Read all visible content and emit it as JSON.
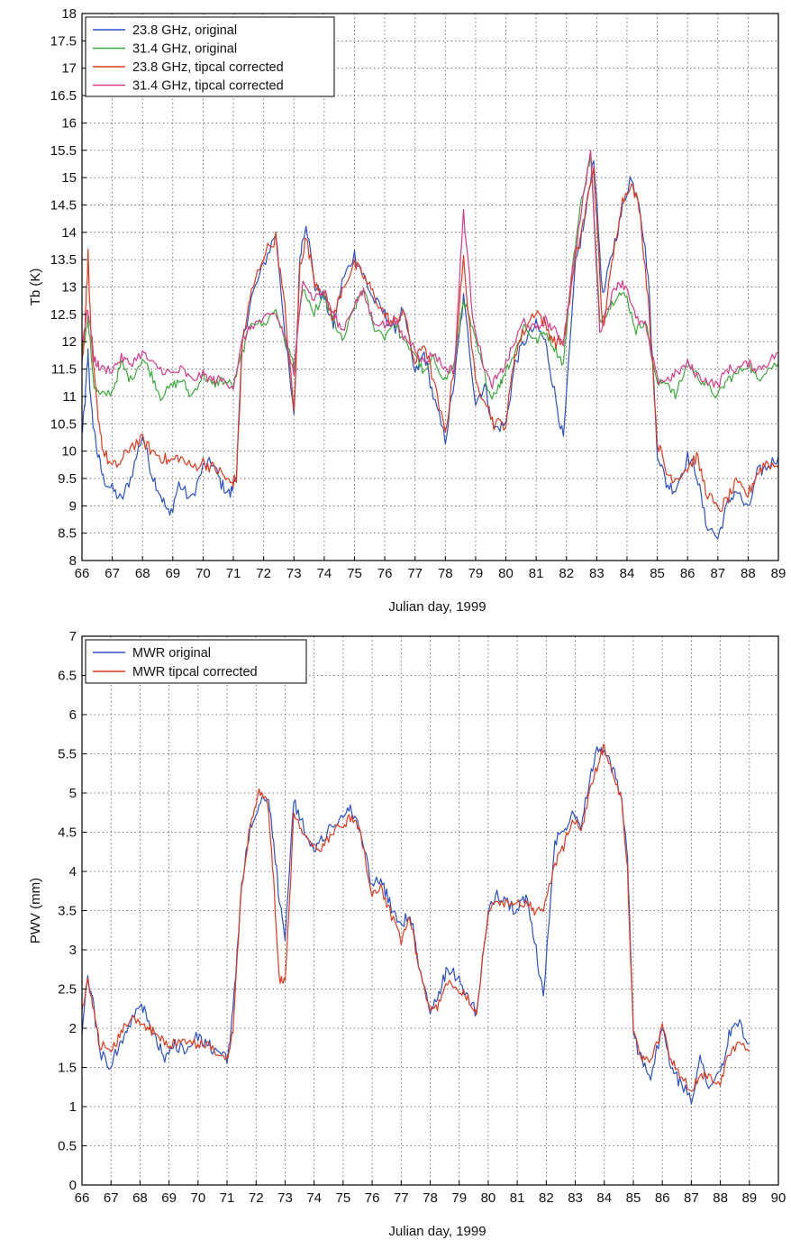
{
  "chart_data": [
    {
      "type": "line",
      "title": "",
      "xlabel": "Julian day, 1999",
      "ylabel": "Tb (K)",
      "xlim": [
        66,
        89
      ],
      "ylim": [
        8,
        18
      ],
      "xticks": [
        66,
        67,
        68,
        69,
        70,
        71,
        72,
        73,
        74,
        75,
        76,
        77,
        78,
        79,
        80,
        81,
        82,
        83,
        84,
        85,
        86,
        87,
        88,
        89
      ],
      "yticks": [
        8,
        8.5,
        9,
        9.5,
        10,
        10.5,
        11,
        11.5,
        12,
        12.5,
        13,
        13.5,
        14,
        14.5,
        15,
        15.5,
        16,
        16.5,
        17,
        17.5,
        18
      ],
      "grid": true,
      "legend": "top-left",
      "series": [
        {
          "name": "23.8 GHz, original",
          "color": "#2b50c8",
          "x": [
            66,
            66.1,
            66.2,
            66.3,
            66.5,
            66.7,
            67,
            67.3,
            67.6,
            68,
            68.3,
            68.6,
            68.9,
            69.2,
            69.6,
            70,
            70.3,
            70.6,
            70.9,
            71.1,
            71.3,
            71.6,
            72,
            72.4,
            72.7,
            73,
            73.2,
            73.4,
            73.7,
            74,
            74.3,
            74.6,
            75,
            75.3,
            75.6,
            76,
            76.3,
            76.6,
            77,
            77.3,
            77.6,
            78,
            78.3,
            78.6,
            79,
            79.3,
            79.6,
            80,
            80.3,
            80.6,
            81,
            81.3,
            81.6,
            81.9,
            82.3,
            82.6,
            82.9,
            83.2,
            83.5,
            83.8,
            84.1,
            84.4,
            84.7,
            85,
            85.3,
            85.6,
            86,
            86.3,
            86.6,
            87,
            87.3,
            87.6,
            88,
            88.3,
            88.6,
            89
          ],
          "y": [
            10.3,
            10.9,
            11.8,
            10.8,
            10.0,
            9.5,
            9.3,
            9.1,
            9.5,
            10.3,
            9.6,
            9.2,
            8.8,
            9.4,
            9.1,
            9.7,
            9.8,
            9.4,
            9.2,
            9.6,
            12.0,
            12.8,
            13.4,
            14.0,
            12.2,
            10.6,
            13.6,
            14.2,
            13.0,
            12.8,
            12.3,
            13.1,
            13.6,
            13.2,
            12.8,
            12.5,
            12.2,
            12.6,
            11.4,
            11.8,
            11.0,
            10.2,
            11.3,
            12.8,
            10.9,
            11.2,
            10.4,
            10.5,
            11.6,
            12.0,
            12.3,
            12.0,
            11.1,
            10.2,
            13.4,
            14.2,
            15.4,
            12.8,
            13.6,
            14.3,
            15.0,
            14.6,
            13.2,
            10.0,
            9.4,
            9.3,
            9.9,
            9.6,
            8.7,
            8.4,
            9.0,
            9.3,
            8.9,
            9.6,
            9.7,
            9.9
          ]
        },
        {
          "name": "31.4 GHz, original",
          "color": "#3aaa3a",
          "x": [
            66,
            66.2,
            66.4,
            66.6,
            67,
            67.3,
            67.6,
            68,
            68.3,
            68.6,
            69,
            69.3,
            69.6,
            70,
            70.3,
            70.6,
            71,
            71.3,
            71.6,
            72,
            72.4,
            72.7,
            73,
            73.3,
            73.6,
            74,
            74.3,
            74.6,
            75,
            75.3,
            75.6,
            76,
            76.3,
            76.6,
            77,
            77.3,
            77.6,
            78,
            78.3,
            78.6,
            78.9,
            79.2,
            79.5,
            79.8,
            80,
            80.3,
            80.6,
            81,
            81.3,
            81.6,
            81.9,
            82.2,
            82.5,
            82.8,
            83.1,
            83.4,
            83.7,
            84,
            84.3,
            84.6,
            85,
            85.3,
            85.6,
            86,
            86.3,
            86.6,
            87,
            87.3,
            87.6,
            88,
            88.3,
            88.6,
            89
          ],
          "y": [
            11.8,
            12.4,
            11.2,
            11.0,
            11.1,
            11.6,
            11.3,
            11.7,
            11.4,
            11.0,
            11.2,
            11.3,
            11.0,
            11.4,
            11.2,
            11.3,
            11.2,
            11.8,
            12.4,
            12.3,
            12.6,
            12.0,
            11.6,
            13.0,
            12.5,
            12.8,
            12.4,
            12.0,
            12.6,
            13.0,
            12.3,
            12.1,
            12.4,
            12.0,
            11.8,
            11.4,
            11.7,
            11.3,
            11.6,
            12.8,
            12.2,
            11.6,
            11.0,
            11.2,
            11.5,
            11.8,
            12.3,
            12.0,
            12.2,
            11.9,
            11.6,
            13.4,
            14.6,
            15.4,
            12.4,
            12.6,
            12.9,
            12.8,
            12.2,
            12.4,
            11.2,
            11.3,
            11.0,
            11.6,
            11.4,
            11.2,
            11.0,
            11.3,
            11.4,
            11.6,
            11.3,
            11.5,
            11.6
          ]
        },
        {
          "name": "23.8 GHz, tipcal corrected",
          "color": "#e23a1e",
          "x": [
            66,
            66.1,
            66.2,
            66.3,
            66.5,
            66.7,
            67,
            67.3,
            67.6,
            68,
            68.3,
            68.6,
            68.9,
            69.2,
            69.6,
            70,
            70.3,
            70.6,
            70.9,
            71.1,
            71.3,
            71.6,
            72,
            72.4,
            72.7,
            73,
            73.2,
            73.4,
            73.7,
            74,
            74.3,
            74.6,
            75,
            75.3,
            75.6,
            76,
            76.3,
            76.6,
            77,
            77.3,
            77.6,
            78,
            78.3,
            78.6,
            79,
            79.3,
            79.6,
            80,
            80.3,
            80.6,
            81,
            81.3,
            81.6,
            81.9,
            82.3,
            82.6,
            82.9,
            83.2,
            83.5,
            83.8,
            84.1,
            84.4,
            84.7,
            85,
            85.3,
            85.6,
            86,
            86.3,
            86.6,
            87,
            87.3,
            87.6,
            88,
            88.3,
            88.6,
            89
          ],
          "y": [
            11.6,
            12.3,
            13.6,
            12.0,
            10.8,
            10.0,
            9.7,
            9.8,
            10.1,
            10.2,
            10.0,
            9.9,
            9.8,
            9.9,
            9.7,
            9.8,
            9.7,
            9.6,
            9.4,
            9.5,
            12.0,
            12.9,
            13.6,
            13.9,
            12.6,
            10.7,
            13.4,
            13.9,
            13.1,
            12.9,
            12.4,
            13.0,
            13.4,
            13.2,
            12.9,
            12.5,
            12.3,
            12.6,
            11.6,
            12.0,
            11.3,
            10.3,
            11.6,
            13.5,
            11.2,
            11.0,
            10.5,
            10.5,
            11.8,
            12.2,
            12.6,
            12.3,
            12.0,
            12.0,
            13.5,
            14.3,
            15.2,
            12.2,
            13.4,
            14.5,
            14.9,
            14.5,
            12.8,
            10.2,
            9.6,
            9.5,
            9.7,
            9.9,
            9.3,
            8.9,
            9.1,
            9.4,
            9.2,
            9.6,
            9.8,
            9.7
          ]
        },
        {
          "name": "31.4 GHz, tipcal corrected",
          "color": "#d83a8a",
          "x": [
            66,
            66.2,
            66.4,
            66.6,
            67,
            67.3,
            67.6,
            68,
            68.3,
            68.6,
            69,
            69.3,
            69.6,
            70,
            70.3,
            70.6,
            71,
            71.3,
            71.6,
            72,
            72.4,
            72.7,
            73,
            73.3,
            73.6,
            74,
            74.3,
            74.6,
            75,
            75.3,
            75.6,
            76,
            76.3,
            76.6,
            77,
            77.3,
            77.6,
            78,
            78.3,
            78.6,
            78.9,
            79.2,
            79.5,
            79.8,
            80,
            80.3,
            80.6,
            81,
            81.3,
            81.6,
            81.9,
            82.2,
            82.5,
            82.8,
            83.1,
            83.4,
            83.7,
            84,
            84.3,
            84.6,
            85,
            85.3,
            85.6,
            86,
            86.3,
            86.6,
            87,
            87.3,
            87.6,
            88,
            88.3,
            88.6,
            89
          ],
          "y": [
            12.0,
            12.6,
            11.7,
            11.5,
            11.5,
            11.7,
            11.6,
            11.8,
            11.6,
            11.5,
            11.4,
            11.5,
            11.3,
            11.4,
            11.3,
            11.3,
            11.2,
            12.0,
            12.3,
            12.4,
            12.5,
            12.1,
            11.4,
            13.2,
            12.8,
            12.9,
            12.5,
            12.2,
            12.7,
            12.9,
            12.4,
            12.3,
            12.4,
            12.1,
            11.9,
            11.6,
            11.8,
            11.5,
            11.5,
            14.4,
            12.5,
            11.7,
            11.2,
            11.4,
            11.6,
            12.0,
            12.4,
            12.2,
            12.4,
            12.2,
            12.0,
            13.3,
            14.4,
            15.5,
            12.2,
            12.7,
            13.1,
            13.0,
            12.4,
            12.3,
            11.3,
            11.3,
            11.4,
            11.6,
            11.4,
            11.3,
            11.2,
            11.5,
            11.5,
            11.6,
            11.5,
            11.6,
            11.8
          ]
        }
      ]
    },
    {
      "type": "line",
      "title": "",
      "xlabel": "Julian day, 1999",
      "ylabel": "PWV (mm)",
      "xlim": [
        66,
        90
      ],
      "ylim": [
        0,
        7
      ],
      "xticks": [
        66,
        67,
        68,
        69,
        70,
        71,
        72,
        73,
        74,
        75,
        76,
        77,
        78,
        79,
        80,
        81,
        82,
        83,
        84,
        85,
        86,
        87,
        88,
        89,
        90
      ],
      "yticks": [
        0,
        0.5,
        1,
        1.5,
        2,
        2.5,
        3,
        3.5,
        4,
        4.5,
        5,
        5.5,
        6,
        6.5,
        7
      ],
      "grid": true,
      "legend": "top-left",
      "series": [
        {
          "name": "MWR original",
          "color": "#2b50c8",
          "x": [
            66,
            66.2,
            66.4,
            66.6,
            67,
            67.3,
            67.6,
            68,
            68.3,
            68.6,
            68.9,
            69.2,
            69.6,
            70,
            70.3,
            70.6,
            71,
            71.2,
            71.5,
            71.8,
            72.1,
            72.4,
            72.6,
            72.8,
            73,
            73.3,
            73.6,
            74,
            74.3,
            74.6,
            75,
            75.3,
            75.6,
            76,
            76.3,
            76.6,
            77,
            77.3,
            77.6,
            78,
            78.3,
            78.6,
            79,
            79.3,
            79.6,
            80,
            80.3,
            80.6,
            81,
            81.3,
            81.6,
            81.9,
            82.3,
            82.6,
            82.9,
            83.2,
            83.5,
            83.8,
            84,
            84.3,
            84.6,
            84.8,
            85,
            85.3,
            85.6,
            86,
            86.3,
            86.6,
            87,
            87.3,
            87.6,
            88,
            88.3,
            88.6,
            89
          ],
          "y": [
            2.0,
            2.6,
            2.3,
            1.7,
            1.5,
            1.8,
            2.0,
            2.3,
            2.1,
            1.8,
            1.6,
            1.8,
            1.7,
            1.9,
            1.8,
            1.7,
            1.6,
            2.2,
            3.8,
            4.6,
            4.8,
            5.0,
            4.4,
            3.6,
            3.2,
            4.9,
            4.6,
            4.3,
            4.4,
            4.6,
            4.7,
            4.8,
            4.5,
            3.8,
            3.9,
            3.6,
            3.3,
            3.5,
            2.8,
            2.2,
            2.4,
            2.8,
            2.6,
            2.4,
            2.2,
            3.5,
            3.7,
            3.6,
            3.5,
            3.7,
            3.1,
            2.4,
            4.4,
            4.5,
            4.8,
            4.6,
            5.2,
            5.6,
            5.5,
            5.3,
            4.9,
            4.2,
            1.9,
            1.6,
            1.4,
            2.0,
            1.5,
            1.3,
            1.1,
            1.6,
            1.3,
            1.4,
            1.9,
            2.1,
            1.8
          ]
        },
        {
          "name": "MWR tipcal corrected",
          "color": "#e23a1e",
          "x": [
            66,
            66.2,
            66.4,
            66.6,
            67,
            67.3,
            67.6,
            68,
            68.3,
            68.6,
            68.9,
            69.2,
            69.6,
            70,
            70.3,
            70.6,
            71,
            71.2,
            71.5,
            71.8,
            72.1,
            72.4,
            72.6,
            72.8,
            73,
            73.3,
            73.6,
            74,
            74.3,
            74.6,
            75,
            75.3,
            75.6,
            76,
            76.3,
            76.6,
            77,
            77.3,
            77.6,
            78,
            78.3,
            78.6,
            79,
            79.3,
            79.6,
            80,
            80.3,
            80.6,
            81,
            81.3,
            81.6,
            81.9,
            82.3,
            82.6,
            82.9,
            83.2,
            83.5,
            83.8,
            84,
            84.3,
            84.6,
            84.8,
            85,
            85.3,
            85.6,
            86,
            86.3,
            86.6,
            87,
            87.3,
            87.6,
            88,
            88.3,
            88.6,
            89
          ],
          "y": [
            2.2,
            2.6,
            2.2,
            1.8,
            1.7,
            1.9,
            2.1,
            2.1,
            2.0,
            1.9,
            1.8,
            1.8,
            1.8,
            1.8,
            1.8,
            1.7,
            1.6,
            2.0,
            3.8,
            4.6,
            5.0,
            4.9,
            3.9,
            2.6,
            2.6,
            4.7,
            4.5,
            4.3,
            4.3,
            4.5,
            4.6,
            4.7,
            4.5,
            3.7,
            3.8,
            3.5,
            3.1,
            3.4,
            2.8,
            2.2,
            2.3,
            2.6,
            2.5,
            2.4,
            2.2,
            3.5,
            3.6,
            3.6,
            3.6,
            3.6,
            3.5,
            3.5,
            4.1,
            4.3,
            4.7,
            4.5,
            5.0,
            5.4,
            5.6,
            5.2,
            4.9,
            4.0,
            2.0,
            1.6,
            1.6,
            2.0,
            1.6,
            1.4,
            1.2,
            1.4,
            1.4,
            1.3,
            1.7,
            1.8,
            1.7
          ]
        }
      ]
    }
  ]
}
